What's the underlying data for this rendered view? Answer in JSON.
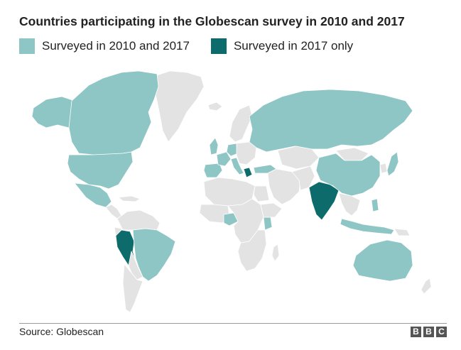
{
  "title": "Countries participating in the Globescan survey in 2010 and 2017",
  "legend": [
    {
      "label": "Surveyed in 2010 and 2017",
      "color": "#8ec5c5"
    },
    {
      "label": "Surveyed in 2017 only",
      "color": "#0d6b6b"
    }
  ],
  "colors": {
    "other_land": "#e3e3e3",
    "borders": "#ffffff"
  },
  "footer": {
    "source": "Source: Globescan",
    "logo_letters": [
      "B",
      "B",
      "C"
    ]
  }
}
